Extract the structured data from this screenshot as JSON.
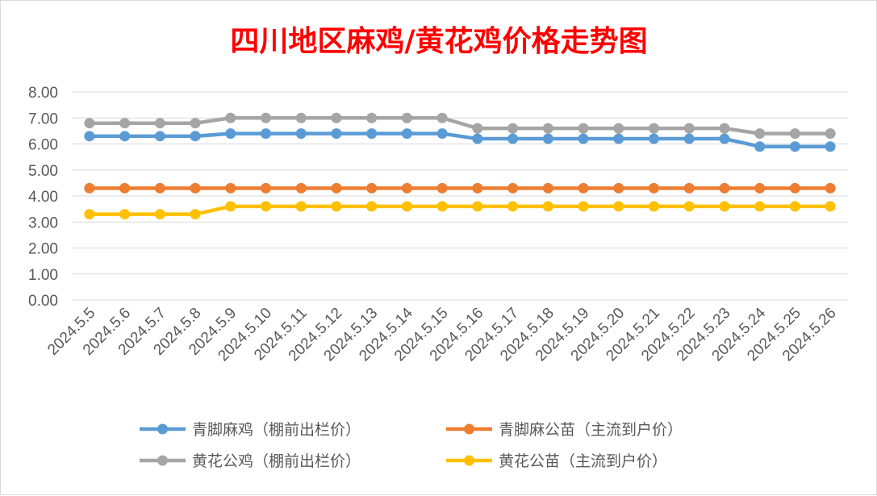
{
  "chart_data": {
    "type": "line",
    "title": "四川地区麻鸡/黄花鸡价格走势图",
    "xlabel": "",
    "ylabel": "",
    "categories": [
      "2024.5.5",
      "2024.5.6",
      "2024.5.7",
      "2024.5.8",
      "2024.5.9",
      "2024.5.10",
      "2024.5.11",
      "2024.5.12",
      "2024.5.13",
      "2024.5.14",
      "2024.5.15",
      "2024.5.16",
      "2024.5.17",
      "2024.5.18",
      "2024.5.19",
      "2024.5.20",
      "2024.5.21",
      "2024.5.22",
      "2024.5.23",
      "2024.5.24",
      "2024.5.25",
      "2024.5.26"
    ],
    "y_tick_labels": [
      "0.00",
      "1.00",
      "2.00",
      "3.00",
      "4.00",
      "5.00",
      "6.00",
      "7.00",
      "8.00"
    ],
    "ylim": [
      0,
      8
    ],
    "grid": true,
    "legend_position": "bottom",
    "series": [
      {
        "name": "青脚麻鸡（棚前出栏价）",
        "color": "#5b9bd5",
        "values": [
          6.3,
          6.3,
          6.3,
          6.3,
          6.4,
          6.4,
          6.4,
          6.4,
          6.4,
          6.4,
          6.4,
          6.2,
          6.2,
          6.2,
          6.2,
          6.2,
          6.2,
          6.2,
          6.2,
          5.9,
          5.9,
          5.9
        ]
      },
      {
        "name": "青脚麻公苗（主流到户价）",
        "color": "#ed7d31",
        "values": [
          4.3,
          4.3,
          4.3,
          4.3,
          4.3,
          4.3,
          4.3,
          4.3,
          4.3,
          4.3,
          4.3,
          4.3,
          4.3,
          4.3,
          4.3,
          4.3,
          4.3,
          4.3,
          4.3,
          4.3,
          4.3,
          4.3
        ]
      },
      {
        "name": "黄花公鸡（棚前出栏价）",
        "color": "#a5a5a5",
        "values": [
          6.8,
          6.8,
          6.8,
          6.8,
          7.0,
          7.0,
          7.0,
          7.0,
          7.0,
          7.0,
          7.0,
          6.6,
          6.6,
          6.6,
          6.6,
          6.6,
          6.6,
          6.6,
          6.6,
          6.4,
          6.4,
          6.4
        ]
      },
      {
        "name": "黄花公苗（主流到户价）",
        "color": "#ffc000",
        "values": [
          3.3,
          3.3,
          3.3,
          3.3,
          3.6,
          3.6,
          3.6,
          3.6,
          3.6,
          3.6,
          3.6,
          3.6,
          3.6,
          3.6,
          3.6,
          3.6,
          3.6,
          3.6,
          3.6,
          3.6,
          3.6,
          3.6
        ]
      }
    ],
    "colors": {
      "grid": "#d9d9d9",
      "axis_text": "#595959",
      "title": "#ff0000"
    }
  }
}
